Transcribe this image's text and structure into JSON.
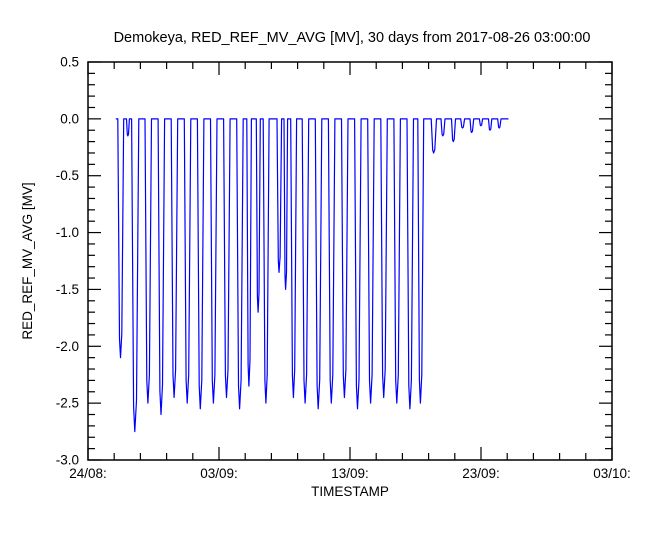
{
  "chart_data": {
    "type": "line",
    "title": "Demokeya, RED_REF_MV_AVG [MV], 30 days from 2017-08-26 03:00:00",
    "xlabel": "TIMESTAMP",
    "ylabel": "RED_REF_MV_AVG [MV]",
    "xlim": [
      0,
      40
    ],
    "ylim": [
      -3.0,
      0.5
    ],
    "x_major_ticks": [
      0,
      10,
      20,
      30,
      40
    ],
    "x_tick_labels": [
      "24/08:",
      "03/09:",
      "13/09:",
      "23/09:",
      "03/10:"
    ],
    "x_minor_step": 2,
    "y_major_ticks": [
      0.5,
      0.0,
      -0.5,
      -1.0,
      -1.5,
      -2.0,
      -2.5,
      -3.0
    ],
    "y_tick_labels": [
      "0.5",
      "0.0",
      "-0.5",
      "-1.0",
      "-1.5",
      "-2.0",
      "-2.5",
      "-3.0"
    ],
    "y_minor_step": 0.1,
    "line_color": "#0000ff",
    "axis_color": "#000000",
    "background": "#ffffff",
    "grid": false,
    "legend": "none",
    "series": [
      {
        "name": "RED_REF_MV_AVG",
        "baseline_value": 0.0,
        "x_start": 2.125,
        "x_end": 32.1,
        "spikes": [
          {
            "c": 2.5,
            "d": -2.1,
            "w": 0.45
          },
          {
            "c": 3.05,
            "d": -0.15,
            "w": 0.22
          },
          {
            "c": 3.6,
            "d": -2.75,
            "w": 0.55
          },
          {
            "c": 4.6,
            "d": -2.5,
            "w": 0.5
          },
          {
            "c": 5.6,
            "d": -2.6,
            "w": 0.5
          },
          {
            "c": 6.6,
            "d": -2.45,
            "w": 0.5
          },
          {
            "c": 7.6,
            "d": -2.5,
            "w": 0.5
          },
          {
            "c": 8.6,
            "d": -2.55,
            "w": 0.5
          },
          {
            "c": 9.6,
            "d": -2.5,
            "w": 0.5
          },
          {
            "c": 10.6,
            "d": -2.45,
            "w": 0.5
          },
          {
            "c": 11.6,
            "d": -2.55,
            "w": 0.5
          },
          {
            "c": 12.3,
            "d": -2.35,
            "w": 0.35
          },
          {
            "c": 13.0,
            "d": -1.7,
            "w": 0.3
          },
          {
            "c": 13.6,
            "d": -2.5,
            "w": 0.45
          },
          {
            "c": 14.6,
            "d": -1.35,
            "w": 0.35
          },
          {
            "c": 15.1,
            "d": -1.5,
            "w": 0.28
          },
          {
            "c": 15.7,
            "d": -2.45,
            "w": 0.45
          },
          {
            "c": 16.6,
            "d": -2.5,
            "w": 0.5
          },
          {
            "c": 17.6,
            "d": -2.55,
            "w": 0.5
          },
          {
            "c": 18.6,
            "d": -2.5,
            "w": 0.5
          },
          {
            "c": 19.6,
            "d": -2.45,
            "w": 0.5
          },
          {
            "c": 20.6,
            "d": -2.55,
            "w": 0.5
          },
          {
            "c": 21.6,
            "d": -2.5,
            "w": 0.5
          },
          {
            "c": 22.6,
            "d": -2.45,
            "w": 0.5
          },
          {
            "c": 23.6,
            "d": -2.5,
            "w": 0.5
          },
          {
            "c": 24.6,
            "d": -2.55,
            "w": 0.5
          },
          {
            "c": 25.4,
            "d": -2.5,
            "w": 0.45
          },
          {
            "c": 26.4,
            "d": -0.3,
            "w": 0.4
          },
          {
            "c": 27.1,
            "d": -0.15,
            "w": 0.3
          },
          {
            "c": 27.9,
            "d": -0.2,
            "w": 0.3
          },
          {
            "c": 28.6,
            "d": -0.08,
            "w": 0.3
          },
          {
            "c": 29.3,
            "d": -0.12,
            "w": 0.28
          },
          {
            "c": 30.0,
            "d": -0.06,
            "w": 0.25
          },
          {
            "c": 30.7,
            "d": -0.1,
            "w": 0.25
          },
          {
            "c": 31.4,
            "d": -0.08,
            "w": 0.25
          }
        ]
      }
    ]
  }
}
